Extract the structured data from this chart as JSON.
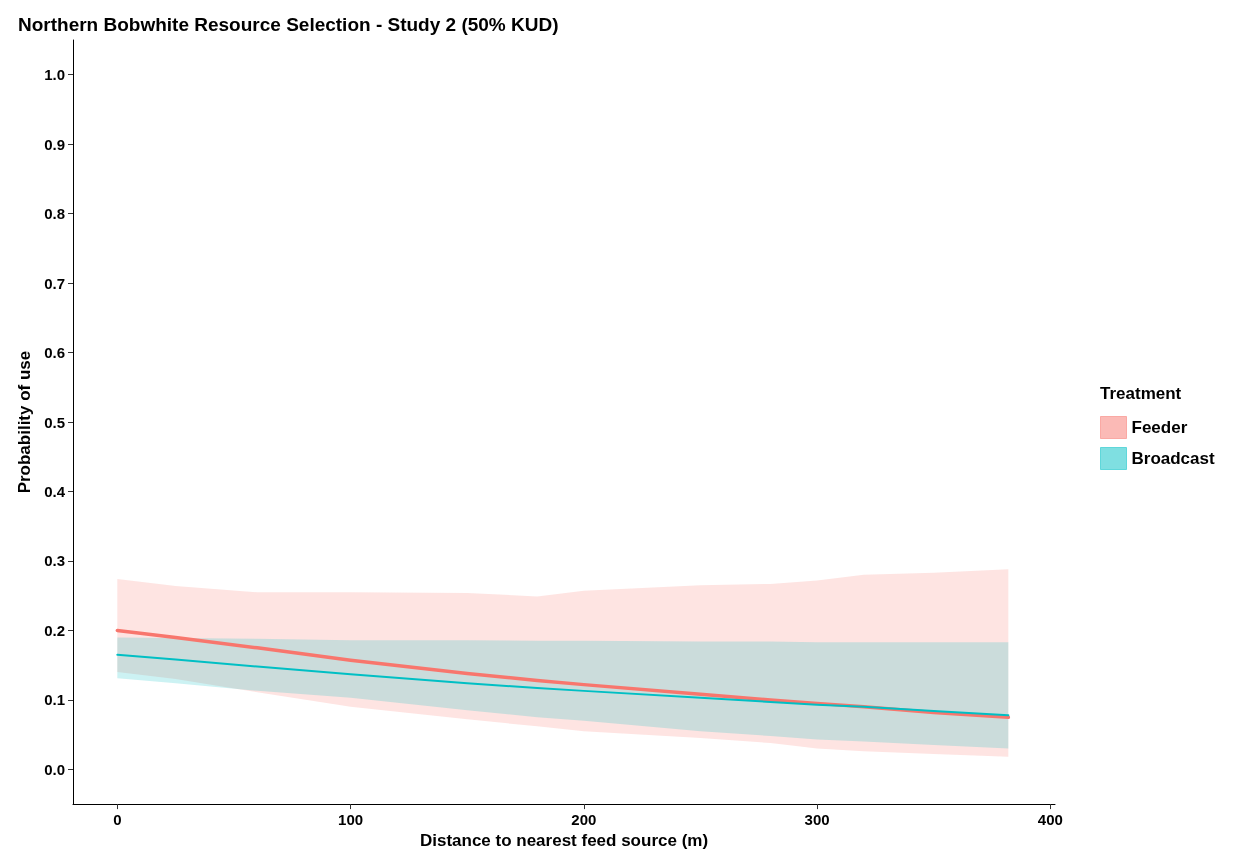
{
  "chart_data": {
    "type": "line",
    "title": "Northern Bobwhite Resource Selection - Study 2 (50% KUD)",
    "xlabel": "Distance to nearest feed source (m)",
    "ylabel": "Probability of use",
    "legend_title": "Treatment",
    "legend": "right",
    "grid": false,
    "marker": "none",
    "line_style": "solid",
    "xlim": [
      -19,
      402
    ],
    "xticks": [
      0,
      100,
      200,
      300,
      400
    ],
    "ylim": [
      -0.05,
      1.05
    ],
    "yticks": [
      {
        "value": 0,
        "label": "0.0"
      },
      {
        "value": 0.1,
        "label": "0.1"
      },
      {
        "value": 0.2,
        "label": "0.2"
      },
      {
        "value": 0.3,
        "label": "0.3"
      },
      {
        "value": 0.4,
        "label": "0.4"
      },
      {
        "value": 0.5,
        "label": "0.5"
      },
      {
        "value": 0.6,
        "label": "0.6"
      },
      {
        "value": 0.7,
        "label": "0.7"
      },
      {
        "value": 0.8,
        "label": "0.8"
      },
      {
        "value": 0.9,
        "label": "0.9"
      },
      {
        "value": 1,
        "label": "1.0"
      }
    ],
    "series": [
      {
        "name": "Feeder",
        "color": "#f8766d",
        "x": [
          0,
          25,
          60,
          100,
          150,
          180,
          200,
          250,
          280,
          300,
          320,
          350,
          382
        ],
        "values": [
          0.2,
          0.19,
          0.175,
          0.157,
          0.138,
          0.128,
          0.122,
          0.108,
          0.1,
          0.095,
          0.09,
          0.082,
          0.075
        ],
        "upper": [
          0.274,
          0.264,
          0.255,
          0.255,
          0.254,
          0.249,
          0.257,
          0.265,
          0.267,
          0.272,
          0.28,
          0.283,
          0.288
        ],
        "lower": [
          0.14,
          0.13,
          0.111,
          0.09,
          0.072,
          0.062,
          0.055,
          0.045,
          0.038,
          0.03,
          0.026,
          0.022,
          0.018
        ]
      },
      {
        "name": "Broadcast",
        "color": "#00bfc4",
        "x": [
          0,
          25,
          60,
          100,
          150,
          180,
          200,
          250,
          280,
          300,
          320,
          350,
          382
        ],
        "values": [
          0.165,
          0.158,
          0.148,
          0.137,
          0.124,
          0.117,
          0.113,
          0.103,
          0.097,
          0.093,
          0.09,
          0.084,
          0.078
        ],
        "upper": [
          0.19,
          0.189,
          0.188,
          0.186,
          0.186,
          0.185,
          0.185,
          0.184,
          0.184,
          0.183,
          0.183,
          0.183,
          0.183
        ],
        "lower": [
          0.131,
          0.124,
          0.113,
          0.103,
          0.085,
          0.075,
          0.07,
          0.055,
          0.048,
          0.043,
          0.04,
          0.035,
          0.03
        ]
      }
    ]
  }
}
